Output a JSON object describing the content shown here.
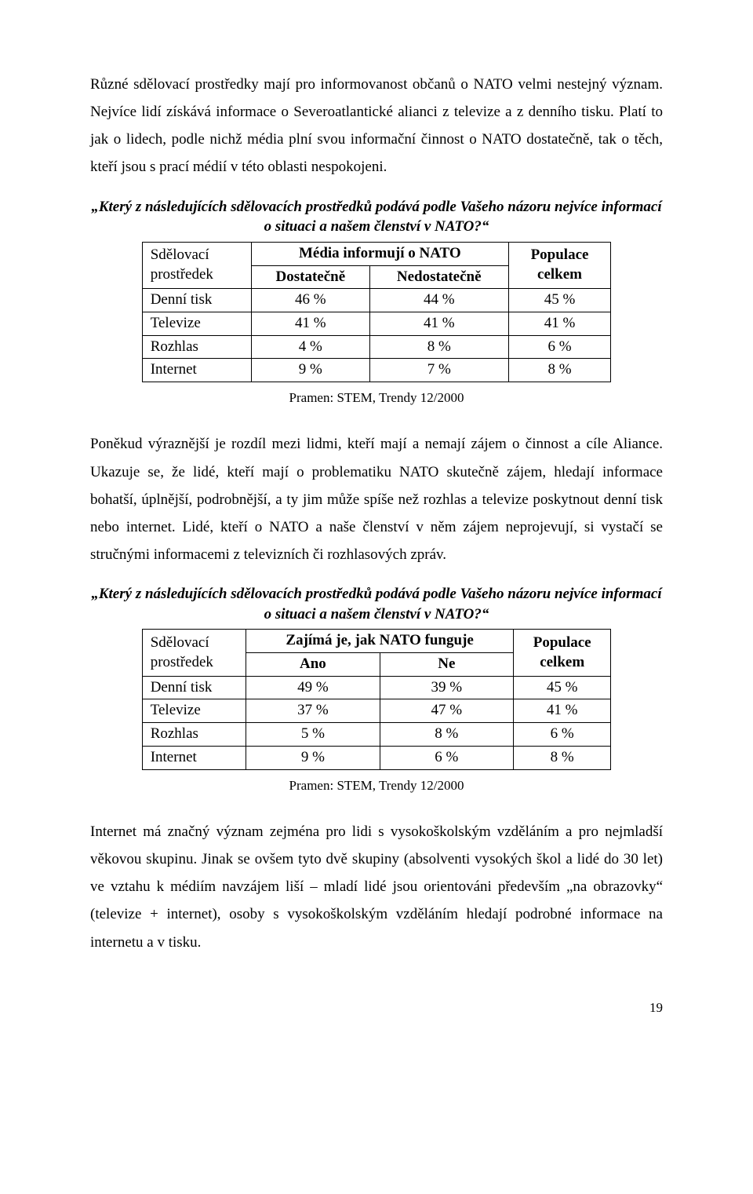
{
  "paragraphs": {
    "p1": "Různé sdělovací prostředky mají pro informovanost občanů o NATO velmi nestejný význam. Nejvíce lidí získává informace o Severoatlantické alianci z televize a z denního tisku. Platí to jak o lidech, podle nichž média plní svou informační činnost o NATO dostatečně, tak o těch, kteří jsou s prací médií v této oblasti nespokojeni.",
    "p2": "Poněkud výraznější je rozdíl mezi lidmi, kteří mají a nemají zájem o činnost a cíle Aliance. Ukazuje se, že lidé, kteří mají o problematiku NATO skutečně zájem, hledají informace bohatší, úplnější, podrobnější, a ty jim může spíše než rozhlas a televize poskytnout denní tisk nebo internet. Lidé, kteří o NATO a naše členství v něm zájem neprojevují, si vystačí se stručnými informacemi z televizních či rozhlasových zpráv.",
    "p3": "Internet má značný význam zejména pro lidi s vysokoškolským vzděláním a pro nejmladší věkovou skupinu. Jinak se ovšem tyto dvě skupiny (absolventi vysokých škol a lidé do 30 let) ve vztahu k médiím navzájem liší – mladí lidé jsou orientováni především „na obrazovky“ (televize + internet), osoby s vysokoškolským vzděláním hledají podrobné informace na internetu a v tisku."
  },
  "question": "„Který z následujících sdělovacích prostředků podává podle Vašeho názoru nejvíce informací o situaci a našem členství v NATO?“",
  "table1": {
    "col1_header_line1": "Sdělovací",
    "col1_header_line2": "prostředek",
    "group_header": "Média informují o NATO",
    "sub_a": "Dostatečně",
    "sub_b": "Nedostatečně",
    "col_total_line1": "Populace",
    "col_total_line2": "celkem",
    "rows": [
      {
        "label": "Denní tisk",
        "a": "46 %",
        "b": "44 %",
        "t": "45 %"
      },
      {
        "label": "Televize",
        "a": "41 %",
        "b": "41 %",
        "t": "41 %"
      },
      {
        "label": "Rozhlas",
        "a": "4 %",
        "b": "8 %",
        "t": "6 %"
      },
      {
        "label": "Internet",
        "a": "9 %",
        "b": "7 %",
        "t": "8 %"
      }
    ]
  },
  "table2": {
    "col1_header_line1": "Sdělovací",
    "col1_header_line2": "prostředek",
    "group_header": "Zajímá je, jak NATO funguje",
    "sub_a": "Ano",
    "sub_b": "Ne",
    "col_total_line1": "Populace",
    "col_total_line2": "celkem",
    "rows": [
      {
        "label": "Denní tisk",
        "a": "49 %",
        "b": "39 %",
        "t": "45 %"
      },
      {
        "label": "Televize",
        "a": "37 %",
        "b": "47 %",
        "t": "41 %"
      },
      {
        "label": "Rozhlas",
        "a": "5 %",
        "b": "8 %",
        "t": "6 %"
      },
      {
        "label": "Internet",
        "a": "9 %",
        "b": "6 %",
        "t": "8 %"
      }
    ]
  },
  "source": "Pramen: STEM, Trendy 12/2000",
  "page_number": "19"
}
